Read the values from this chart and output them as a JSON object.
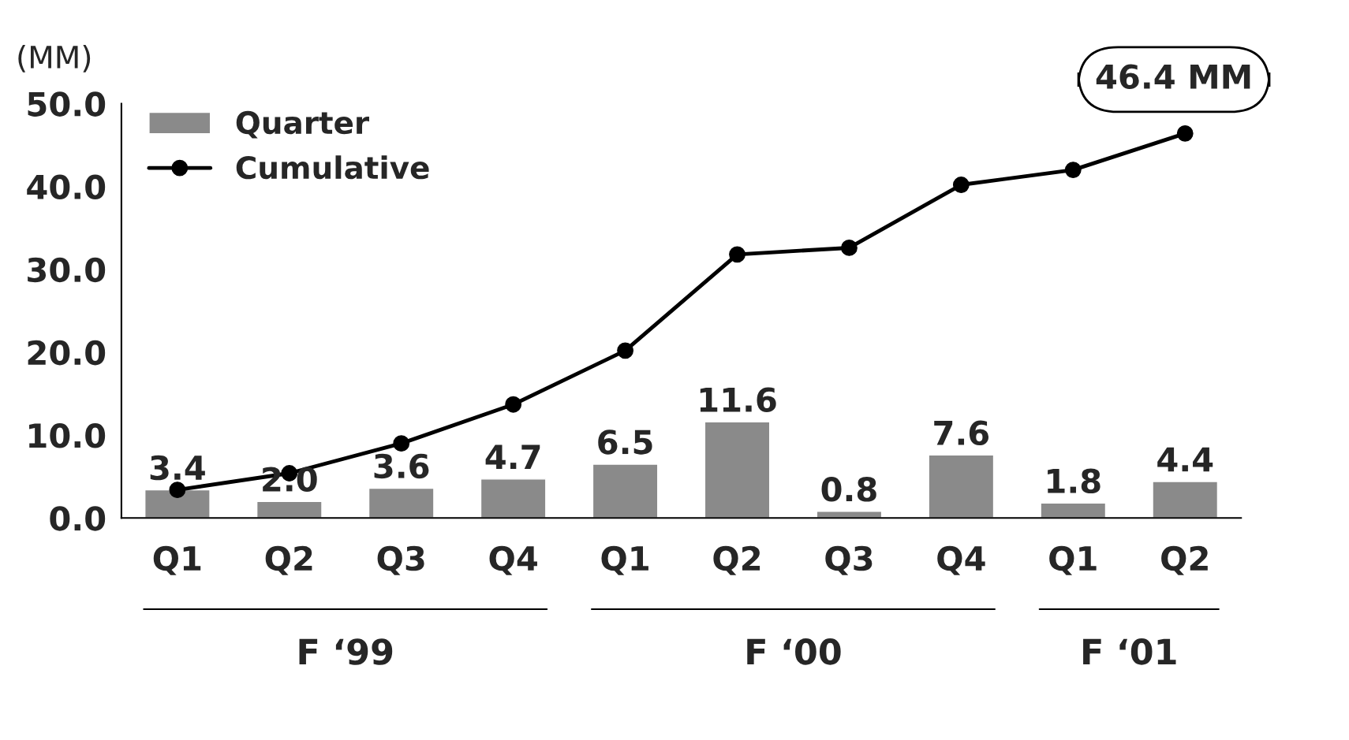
{
  "chart_data": {
    "type": "bar",
    "ylabel": "(MM)",
    "categories": [
      "Q1",
      "Q2",
      "Q3",
      "Q4",
      "Q1",
      "Q2",
      "Q3",
      "Q4",
      "Q1",
      "Q2"
    ],
    "series": [
      {
        "name": "Quarter",
        "color": "#8a8a8a",
        "values": [
          3.4,
          2.0,
          3.6,
          4.7,
          6.5,
          11.6,
          0.8,
          7.6,
          1.8,
          4.4
        ],
        "value_labels": [
          "3.4",
          "2.0",
          "3.6",
          "4.7",
          "6.5",
          "11.6",
          "0.8",
          "7.6",
          "1.8",
          "4.4"
        ]
      },
      {
        "name": "Cumulative",
        "type": "line",
        "color": "#000000",
        "marker": "circle",
        "values": [
          3.4,
          5.4,
          9.0,
          13.7,
          20.2,
          31.8,
          32.6,
          40.2,
          42.0,
          46.4
        ]
      }
    ],
    "ylim": [
      0,
      50
    ],
    "yticks": [
      {
        "value": 0,
        "label": "0.0"
      },
      {
        "value": 10,
        "label": "10.0"
      },
      {
        "value": 20,
        "label": "20.0"
      },
      {
        "value": 30,
        "label": "30.0"
      },
      {
        "value": 40,
        "label": "40.0"
      },
      {
        "value": 50,
        "label": "50.0"
      }
    ],
    "legend": "top left",
    "annotations": [
      "F ‘99",
      "F ‘00",
      "F ‘01",
      "46.4 MM"
    ]
  }
}
